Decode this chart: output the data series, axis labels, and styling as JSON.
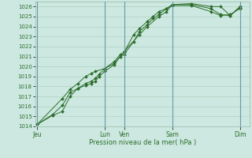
{
  "xlabel": "Pression niveau de la mer( hPa )",
  "bg_color": "#cce8e0",
  "grid_color": "#aaccbb",
  "line_color": "#2d6e2d",
  "marker_color": "#2d6e2d",
  "ylim": [
    1014,
    1026.5
  ],
  "yticks": [
    1014,
    1015,
    1016,
    1017,
    1018,
    1019,
    1020,
    1021,
    1022,
    1023,
    1024,
    1025,
    1026
  ],
  "day_labels": [
    "Jeu",
    "Lun",
    "Ven",
    "Sam",
    "Dim"
  ],
  "day_positions": [
    0.0,
    3.5,
    4.5,
    7.0,
    10.5
  ],
  "vline_positions": [
    0.0,
    3.5,
    4.5,
    7.0,
    10.5
  ],
  "xlim": [
    -0.1,
    11.0
  ],
  "series": [
    [
      0.0,
      1014.2,
      0.8,
      1015.1,
      1.3,
      1015.5,
      1.7,
      1017.0,
      2.1,
      1017.8,
      2.5,
      1018.1,
      2.8,
      1018.3,
      3.0,
      1018.5,
      3.2,
      1019.0,
      3.5,
      1019.5,
      4.0,
      1020.2,
      4.3,
      1021.0,
      4.5,
      1021.2,
      5.0,
      1022.5,
      5.3,
      1023.5,
      5.7,
      1024.2,
      6.0,
      1024.8,
      6.3,
      1025.2,
      6.7,
      1025.8,
      7.0,
      1026.1,
      8.0,
      1026.1,
      9.0,
      1025.5,
      9.5,
      1025.1,
      10.0,
      1025.2,
      10.5,
      1025.8
    ],
    [
      0.0,
      1014.2,
      0.8,
      1015.2,
      1.3,
      1016.1,
      1.7,
      1017.4,
      2.1,
      1017.8,
      2.5,
      1018.3,
      2.8,
      1018.5,
      3.0,
      1018.8,
      3.2,
      1019.2,
      3.5,
      1019.8,
      4.0,
      1020.5,
      4.3,
      1021.2,
      4.5,
      1021.4,
      5.0,
      1023.2,
      5.3,
      1023.8,
      5.7,
      1024.5,
      6.0,
      1025.0,
      6.3,
      1025.5,
      6.7,
      1025.8,
      7.0,
      1026.2,
      8.0,
      1026.2,
      9.0,
      1025.8,
      9.5,
      1025.2,
      10.0,
      1025.1,
      10.5,
      1025.9
    ],
    [
      0.0,
      1014.2,
      1.3,
      1016.8,
      1.7,
      1017.7,
      2.1,
      1018.3,
      2.5,
      1019.0,
      2.8,
      1019.3,
      3.0,
      1019.5,
      3.5,
      1019.8,
      4.0,
      1020.3,
      4.5,
      1021.5,
      5.3,
      1023.2,
      5.7,
      1024.0,
      6.3,
      1025.0,
      6.7,
      1025.5,
      7.0,
      1026.2,
      8.0,
      1026.3,
      9.0,
      1026.0,
      9.5,
      1026.0,
      10.0,
      1025.1,
      10.5,
      1026.0
    ]
  ]
}
